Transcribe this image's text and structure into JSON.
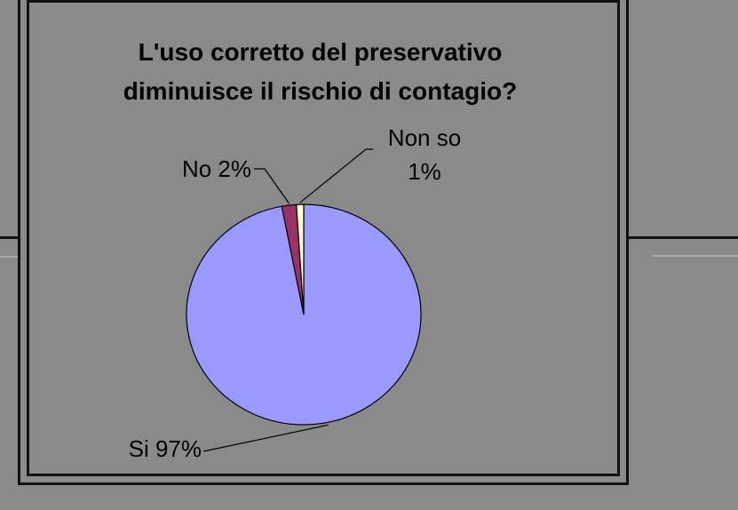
{
  "chart_data": {
    "type": "pie",
    "title_lines": [
      "L'uso corretto del preservativo",
      "diminuisce il rischio di contagio?"
    ],
    "slices": [
      {
        "label": "Si",
        "value": 97,
        "label_text": "Si 97%",
        "color": "#9999ff"
      },
      {
        "label": "No",
        "value": 2,
        "label_text": "No 2%",
        "color": "#993366"
      },
      {
        "label": "Non so",
        "value": 1,
        "label_lines": [
          "Non so",
          "1%"
        ],
        "color": "#ffffcc"
      }
    ],
    "legend": "none"
  },
  "colors": {
    "background": "#8a8a8a",
    "frame": "#111111"
  }
}
